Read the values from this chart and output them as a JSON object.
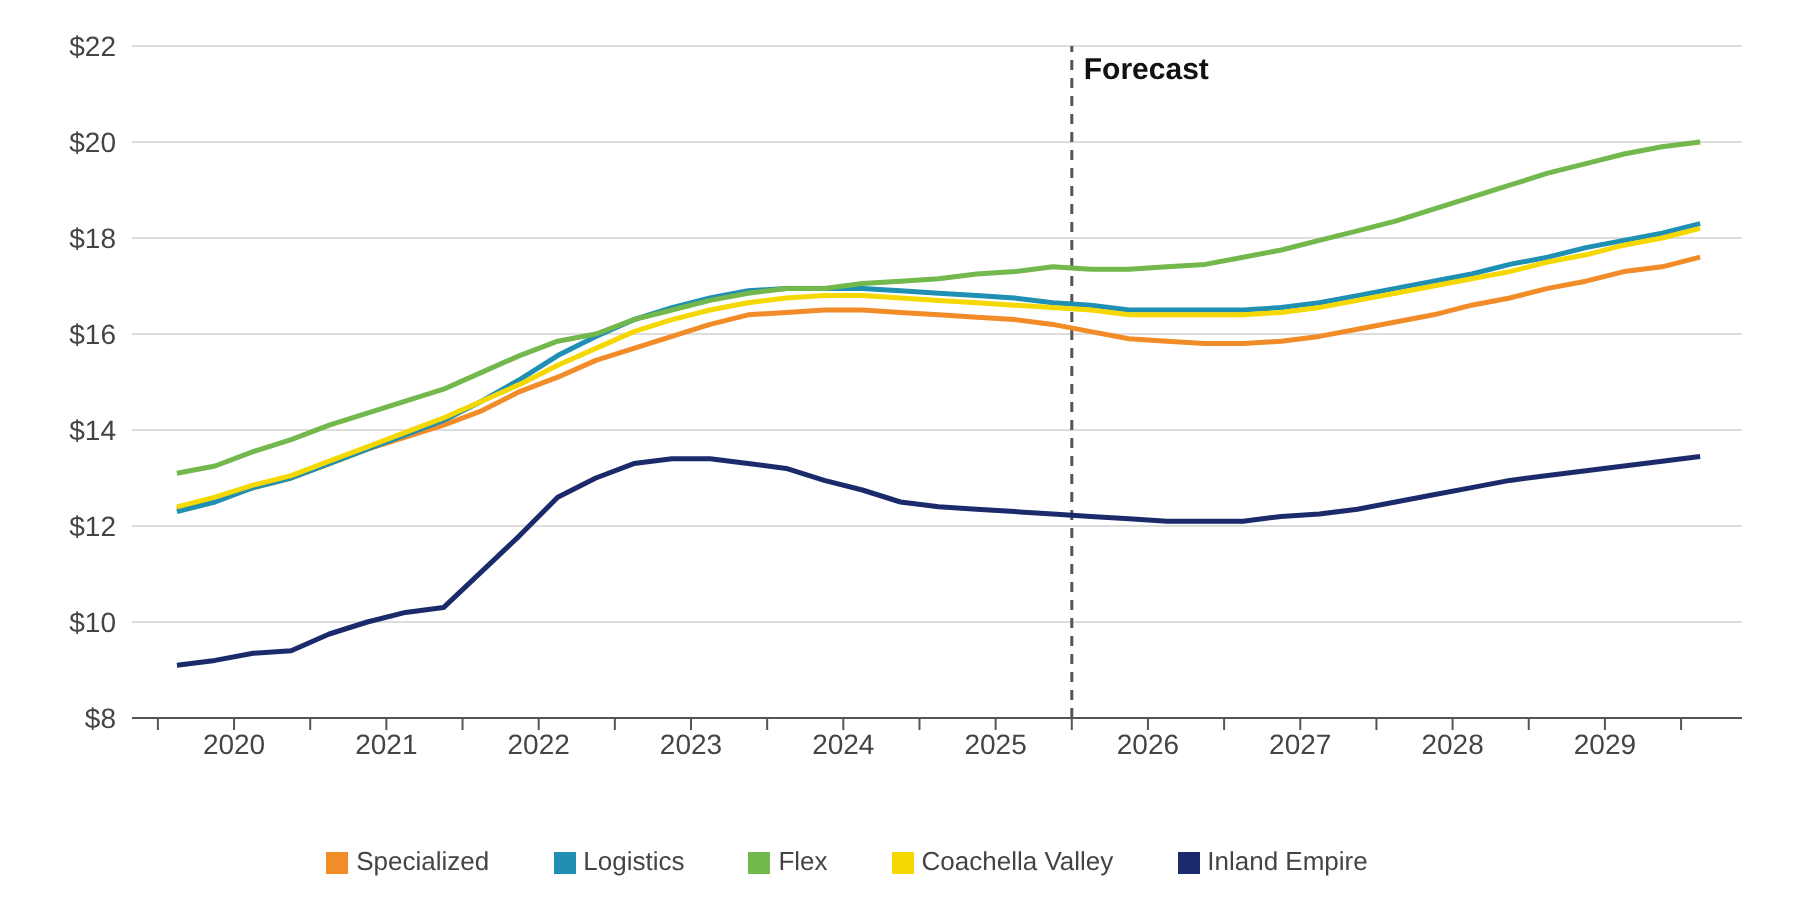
{
  "chart_data": {
    "type": "line",
    "x": [
      2020.125,
      2020.375,
      2020.625,
      2020.875,
      2021.125,
      2021.375,
      2021.625,
      2021.875,
      2022.125,
      2022.375,
      2022.625,
      2022.875,
      2023.125,
      2023.375,
      2023.625,
      2023.875,
      2024.125,
      2024.375,
      2024.625,
      2024.875,
      2025.125,
      2025.375,
      2025.625,
      2025.875,
      2026.125,
      2026.375,
      2026.625,
      2026.875,
      2027.125,
      2027.375,
      2027.625,
      2027.875,
      2028.125,
      2028.375,
      2028.625,
      2028.875,
      2029.125,
      2029.375,
      2029.625,
      2029.875,
      2030.125
    ],
    "series": [
      {
        "name": "Specialized",
        "color": "#f28c28",
        "values": [
          12.35,
          12.55,
          12.8,
          13.0,
          13.3,
          13.6,
          13.85,
          14.1,
          14.4,
          14.8,
          15.1,
          15.45,
          15.7,
          15.95,
          16.2,
          16.4,
          16.45,
          16.5,
          16.5,
          16.45,
          16.4,
          16.35,
          16.3,
          16.2,
          16.05,
          15.9,
          15.85,
          15.8,
          15.8,
          15.85,
          15.95,
          16.1,
          16.25,
          16.4,
          16.6,
          16.75,
          16.95,
          17.1,
          17.3,
          17.4,
          17.6
        ]
      },
      {
        "name": "Logistics",
        "color": "#1f8fb3",
        "values": [
          12.3,
          12.5,
          12.8,
          13.0,
          13.3,
          13.6,
          13.9,
          14.2,
          14.6,
          15.05,
          15.55,
          15.95,
          16.3,
          16.55,
          16.75,
          16.9,
          16.95,
          16.95,
          16.95,
          16.9,
          16.85,
          16.8,
          16.75,
          16.65,
          16.6,
          16.5,
          16.5,
          16.5,
          16.5,
          16.55,
          16.65,
          16.8,
          16.95,
          17.1,
          17.25,
          17.45,
          17.6,
          17.8,
          17.95,
          18.1,
          18.3
        ]
      },
      {
        "name": "Flex",
        "color": "#72b84c",
        "values": [
          13.1,
          13.25,
          13.55,
          13.8,
          14.1,
          14.35,
          14.6,
          14.85,
          15.2,
          15.55,
          15.85,
          16.0,
          16.3,
          16.5,
          16.7,
          16.85,
          16.95,
          16.95,
          17.05,
          17.1,
          17.15,
          17.25,
          17.3,
          17.4,
          17.35,
          17.35,
          17.4,
          17.45,
          17.6,
          17.75,
          17.95,
          18.15,
          18.35,
          18.6,
          18.85,
          19.1,
          19.35,
          19.55,
          19.75,
          19.9,
          20.0
        ]
      },
      {
        "name": "Coachella Valley",
        "color": "#f5d800",
        "values": [
          12.4,
          12.6,
          12.85,
          13.05,
          13.35,
          13.65,
          13.95,
          14.25,
          14.6,
          14.95,
          15.35,
          15.7,
          16.05,
          16.3,
          16.5,
          16.65,
          16.75,
          16.8,
          16.8,
          16.75,
          16.7,
          16.65,
          16.6,
          16.55,
          16.5,
          16.4,
          16.4,
          16.4,
          16.4,
          16.45,
          16.55,
          16.7,
          16.85,
          17.0,
          17.15,
          17.3,
          17.5,
          17.65,
          17.85,
          18.0,
          18.2
        ]
      },
      {
        "name": "Inland Empire",
        "color": "#1b2a6b",
        "values": [
          9.1,
          9.2,
          9.35,
          9.4,
          9.75,
          10.0,
          10.2,
          10.3,
          11.05,
          11.8,
          12.6,
          13.0,
          13.3,
          13.4,
          13.4,
          13.3,
          13.2,
          12.95,
          12.75,
          12.5,
          12.4,
          12.35,
          12.3,
          12.25,
          12.2,
          12.15,
          12.1,
          12.1,
          12.1,
          12.2,
          12.25,
          12.35,
          12.5,
          12.65,
          12.8,
          12.95,
          13.05,
          13.15,
          13.25,
          13.35,
          13.45
        ]
      }
    ],
    "xlim": [
      2019.83,
      2030.4
    ],
    "xticks": [
      {
        "value": 2020,
        "label": null
      },
      {
        "value": 2020.5,
        "label": "2020"
      },
      {
        "value": 2021,
        "label": null
      },
      {
        "value": 2021.5,
        "label": "2021"
      },
      {
        "value": 2022,
        "label": null
      },
      {
        "value": 2022.5,
        "label": "2022"
      },
      {
        "value": 2023,
        "label": null
      },
      {
        "value": 2023.5,
        "label": "2023"
      },
      {
        "value": 2024,
        "label": null
      },
      {
        "value": 2024.5,
        "label": "2024"
      },
      {
        "value": 2025,
        "label": null
      },
      {
        "value": 2025.5,
        "label": "2025"
      },
      {
        "value": 2026,
        "label": null
      },
      {
        "value": 2026.5,
        "label": "2026"
      },
      {
        "value": 2027,
        "label": null
      },
      {
        "value": 2027.5,
        "label": "2027"
      },
      {
        "value": 2028,
        "label": null
      },
      {
        "value": 2028.5,
        "label": "2028"
      },
      {
        "value": 2029,
        "label": null
      },
      {
        "value": 2029.5,
        "label": "2029"
      },
      {
        "value": 2030,
        "label": null
      }
    ],
    "ylim": [
      8,
      22
    ],
    "yticks": [
      {
        "value": 8,
        "label": "$8"
      },
      {
        "value": 10,
        "label": "$10"
      },
      {
        "value": 12,
        "label": "$12"
      },
      {
        "value": 14,
        "label": "$14"
      },
      {
        "value": 16,
        "label": "$16"
      },
      {
        "value": 18,
        "label": "$18"
      },
      {
        "value": 20,
        "label": "$20"
      },
      {
        "value": 22,
        "label": "$22"
      }
    ],
    "ref_lines": [
      {
        "axis": "x",
        "value": 2026,
        "label": "Forecast",
        "color": "#555555",
        "line_style": "dashed"
      }
    ],
    "grid": "y",
    "legend": "bottom",
    "marker": "none",
    "line_style": "solid"
  }
}
